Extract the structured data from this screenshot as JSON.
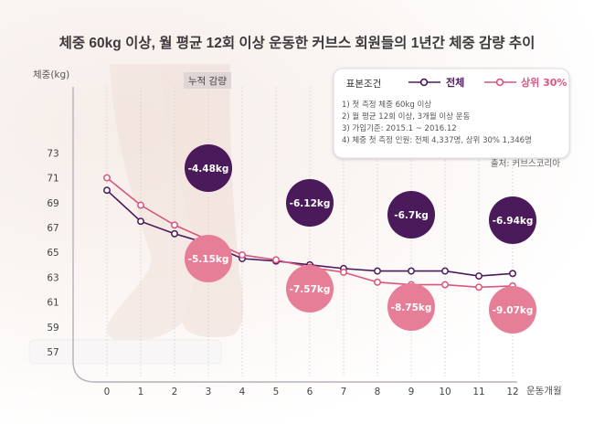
{
  "chart_data": {
    "type": "line",
    "title": "체중 60kg 이상, 월 평균 12회 이상 운동한 커브스 회원들의 1년간 체중 감량 추이",
    "ylabel": "체중(kg)",
    "xlabel": "운동개월",
    "ylim": [
      55,
      75
    ],
    "xlim": [
      0,
      12
    ],
    "y_ticks": [
      57,
      59,
      61,
      63,
      65,
      67,
      69,
      71,
      73
    ],
    "x_ticks": [
      0,
      1,
      2,
      3,
      4,
      5,
      6,
      7,
      8,
      9,
      10,
      11,
      12
    ],
    "series": [
      {
        "name": "전체",
        "color": "#4b1a5a",
        "x": [
          0,
          1,
          2,
          3,
          4,
          5,
          6,
          7,
          8,
          9,
          10,
          11,
          12
        ],
        "values": [
          70.0,
          67.5,
          66.5,
          65.7,
          64.5,
          64.3,
          64.0,
          63.7,
          63.5,
          63.5,
          63.5,
          63.1,
          63.3
        ]
      },
      {
        "name": "상위 30%",
        "color": "#d9557f",
        "x": [
          0,
          1,
          2,
          3,
          4,
          5,
          6,
          7,
          8,
          9,
          10,
          11,
          12
        ],
        "values": [
          71.0,
          68.8,
          67.2,
          66.0,
          64.8,
          64.4,
          63.8,
          63.4,
          62.6,
          62.4,
          62.4,
          62.2,
          62.3
        ]
      }
    ],
    "cumulative_label": "누적 감량",
    "loss_labels": [
      {
        "month": 3,
        "all": "-4.48kg",
        "top30": "-5.15kg"
      },
      {
        "month": 6,
        "all": "-6.12kg",
        "top30": "-7.57kg"
      },
      {
        "month": 9,
        "all": "-6.7kg",
        "top30": "-8.75kg"
      },
      {
        "month": 12,
        "all": "-6.94kg",
        "top30": "-9.07kg"
      }
    ],
    "legend_position": "top-right",
    "grid": "vertical-dashed"
  },
  "sample_conditions": {
    "title": "표본조건",
    "lines": [
      "1) 첫 측정 체중 60kg 이상",
      "2) 월 평균 12회 이상, 3개월 이상 운동",
      "3) 가입기준: 2015.1 ~ 2016.12",
      "4) 체중 첫 측정 인원: 전체 4,337명, 상위 30% 1,346명"
    ]
  },
  "source": "출처: 커브스코리아",
  "colors": {
    "all": "#4b1a5a",
    "top30": "#d9557f",
    "top30_bubble": "#e77e97",
    "axis": "#b8b0b8"
  }
}
